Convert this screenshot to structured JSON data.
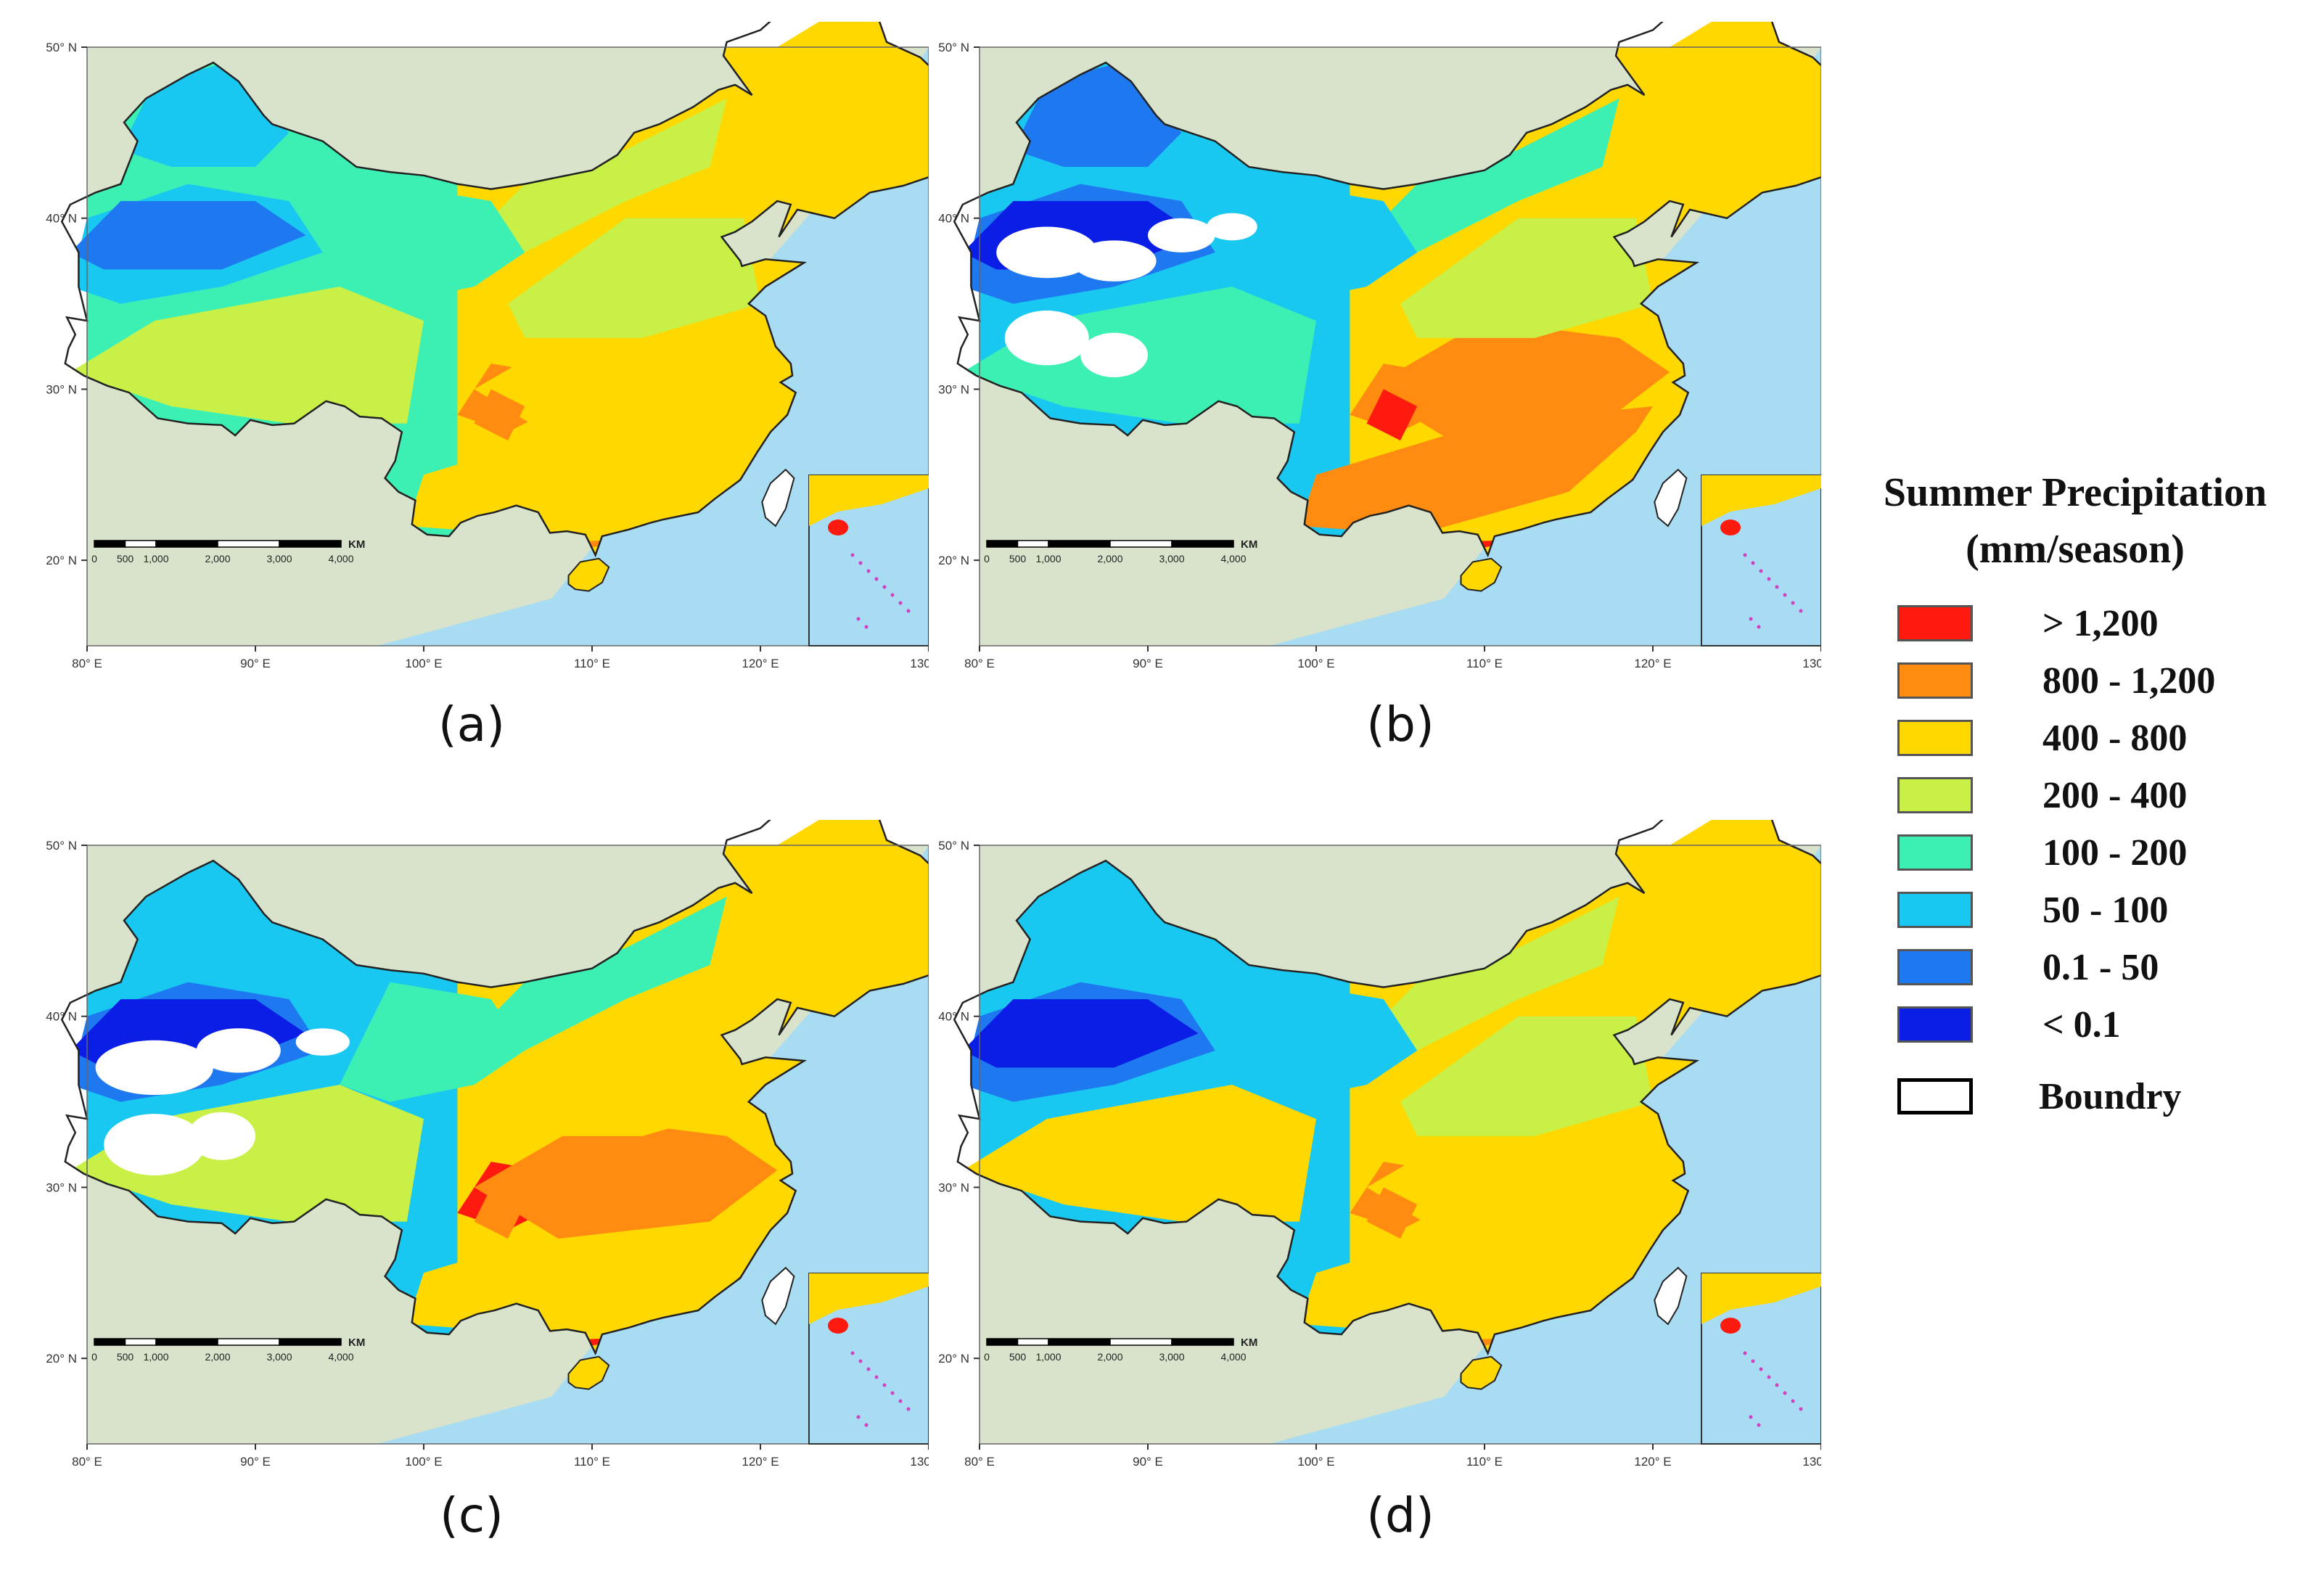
{
  "figure": {
    "panels": [
      {
        "id": "a",
        "label": "(a)",
        "variant": 0
      },
      {
        "id": "b",
        "label": "(b)",
        "variant": 1
      },
      {
        "id": "c",
        "label": "(c)",
        "variant": 2
      },
      {
        "id": "d",
        "label": "(d)",
        "variant": 3
      }
    ],
    "lat_ticks": [
      "20° N",
      "30° N",
      "40° N",
      "50° N"
    ],
    "lon_ticks": [
      "80° E",
      "90° E",
      "100° E",
      "110° E",
      "120° E",
      "130° E"
    ],
    "scale_bar": {
      "ticks": [
        "0",
        "500",
        "1,000",
        "2,000",
        "3,000",
        "4,000"
      ],
      "unit": "KM"
    }
  },
  "legend": {
    "title_line1": "Summer Precipitation",
    "title_line2": "(mm/season)",
    "items": [
      {
        "label": "> 1,200",
        "color": "#ff1a10"
      },
      {
        "label": "800 - 1,200",
        "color": "#ff8c10"
      },
      {
        "label": "400 - 800",
        "color": "#ffd800"
      },
      {
        "label": "200 - 400",
        "color": "#c8f046"
      },
      {
        "label": "100 - 200",
        "color": "#3cf0b4"
      },
      {
        "label": "50 - 100",
        "color": "#18c8f0"
      },
      {
        "label": "0.1 - 50",
        "color": "#1e78f0"
      },
      {
        "label": "< 0.1",
        "color": "#0a1ee6"
      }
    ],
    "boundary_label": "Boundry"
  },
  "colors": {
    "land": "#d9e3cc",
    "sea": "#a8dcf2",
    "country_border": "#222222"
  }
}
